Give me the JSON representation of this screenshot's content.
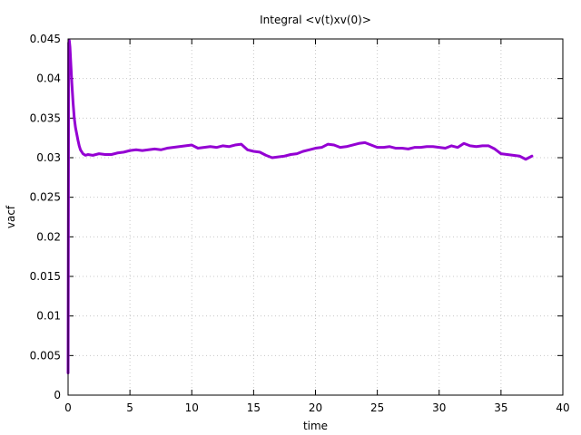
{
  "chart_data": {
    "type": "line",
    "title": "Integral <v(t)xv(0)>",
    "xlabel": "time",
    "ylabel": "vacf",
    "xlim": [
      0,
      40
    ],
    "ylim": [
      0,
      0.045
    ],
    "xticks": [
      0,
      5,
      10,
      15,
      20,
      25,
      30,
      35,
      40
    ],
    "yticks": [
      0,
      0.005,
      0.01,
      0.015,
      0.02,
      0.025,
      0.03,
      0.035,
      0.04,
      0.045
    ],
    "xtick_labels": [
      "0",
      "5",
      "10",
      "15",
      "20",
      "25",
      "30",
      "35",
      "40"
    ],
    "ytick_labels": [
      "0",
      "0.005",
      "0.01",
      "0.015",
      "0.02",
      "0.025",
      "0.03",
      "0.035",
      "0.04",
      "0.045"
    ],
    "grid": true,
    "series": [
      {
        "color": "#9400d3",
        "x": [
          0,
          0.05,
          0.1,
          0.15,
          0.2,
          0.3,
          0.4,
          0.5,
          0.6,
          0.7,
          0.8,
          0.9,
          1.0,
          1.2,
          1.4,
          1.6,
          2.0,
          2.5,
          3.0,
          3.5,
          4.0,
          4.5,
          5.0,
          5.5,
          6.0,
          6.5,
          7.0,
          7.5,
          8.0,
          8.5,
          9.0,
          9.5,
          10.0,
          10.5,
          11.0,
          11.5,
          12.0,
          12.5,
          13.0,
          13.5,
          14.0,
          14.5,
          15.0,
          15.5,
          16.0,
          16.5,
          17.0,
          17.5,
          18.0,
          18.5,
          19.0,
          19.5,
          20.0,
          20.5,
          21.0,
          21.5,
          22.0,
          22.5,
          23.0,
          23.5,
          24.0,
          24.5,
          25.0,
          25.5,
          26.0,
          26.5,
          27.0,
          27.5,
          28.0,
          28.5,
          29.0,
          29.5,
          30.0,
          30.5,
          31.0,
          31.5,
          32.0,
          32.5,
          33.0,
          33.5,
          34.0,
          34.5,
          35.0,
          35.5,
          36.0,
          36.5,
          37.0,
          37.5
        ],
        "y": [
          0.0028,
          0.0445,
          0.0448,
          0.044,
          0.0425,
          0.0395,
          0.037,
          0.035,
          0.0338,
          0.033,
          0.0322,
          0.0315,
          0.031,
          0.0305,
          0.0303,
          0.0304,
          0.0303,
          0.0305,
          0.0304,
          0.0304,
          0.0306,
          0.0307,
          0.0309,
          0.031,
          0.0309,
          0.031,
          0.0311,
          0.031,
          0.0312,
          0.0313,
          0.0314,
          0.0315,
          0.0316,
          0.0312,
          0.0313,
          0.0314,
          0.0313,
          0.0315,
          0.0314,
          0.0316,
          0.0317,
          0.031,
          0.0308,
          0.0307,
          0.0303,
          0.03,
          0.0301,
          0.0302,
          0.0304,
          0.0305,
          0.0308,
          0.031,
          0.0312,
          0.0313,
          0.0317,
          0.0316,
          0.0313,
          0.0314,
          0.0316,
          0.0318,
          0.0319,
          0.0316,
          0.0313,
          0.0313,
          0.0314,
          0.0312,
          0.0312,
          0.0311,
          0.0313,
          0.0313,
          0.0314,
          0.0314,
          0.0313,
          0.0312,
          0.0315,
          0.0313,
          0.0318,
          0.0315,
          0.0314,
          0.0315,
          0.0315,
          0.0311,
          0.0305,
          0.0304,
          0.0303,
          0.0302,
          0.0298,
          0.0302
        ]
      }
    ]
  }
}
